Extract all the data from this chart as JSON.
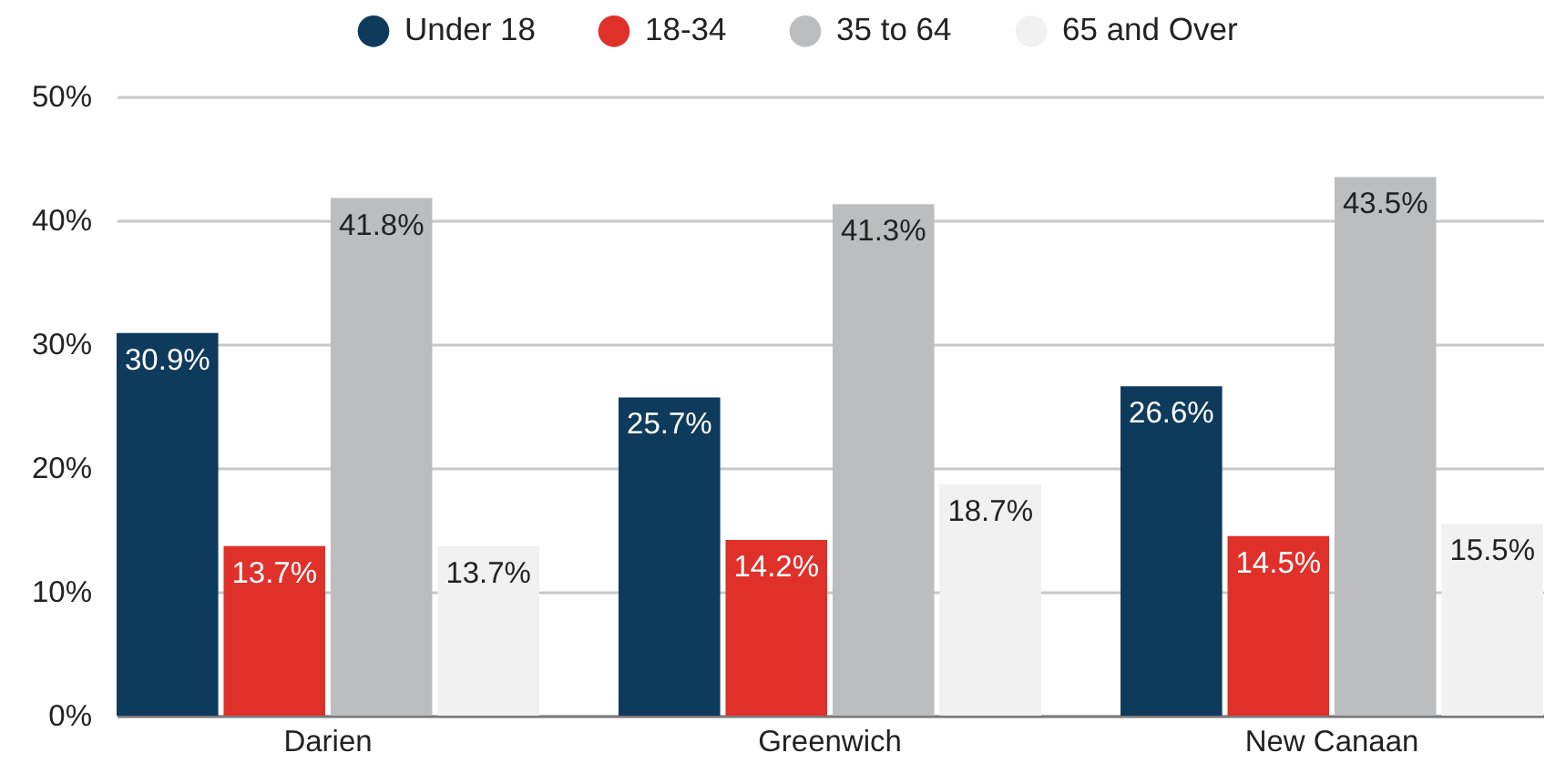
{
  "chart_data": {
    "type": "bar",
    "categories": [
      "Darien",
      "Greenwich",
      "New Canaan"
    ],
    "series": [
      {
        "name": "Under 18",
        "color": "#0e3a5c",
        "values": [
          30.9,
          25.7,
          26.6
        ],
        "value_labels": [
          "30.9%",
          "25.7%",
          "26.6%"
        ]
      },
      {
        "name": "18-34",
        "color": "#e0302a",
        "values": [
          13.7,
          14.2,
          14.5
        ],
        "value_labels": [
          "13.7%",
          "14.2%",
          "14.5%"
        ]
      },
      {
        "name": "35 to 64",
        "color": "#bcbdbf",
        "values": [
          41.8,
          41.3,
          43.5
        ],
        "value_labels": [
          "41.8%",
          "41.3%",
          "43.5%"
        ]
      },
      {
        "name": "65 and Over",
        "color": "#f0f1f0",
        "values": [
          13.7,
          18.7,
          15.5
        ],
        "value_labels": [
          "13.7%",
          "18.7%",
          "15.5%"
        ]
      }
    ],
    "ylim": [
      0,
      50
    ],
    "yticks": [
      {
        "value": 0,
        "label": "0%"
      },
      {
        "value": 10,
        "label": "10%"
      },
      {
        "value": 20,
        "label": "20%"
      },
      {
        "value": 30,
        "label": "30%"
      },
      {
        "value": 40,
        "label": "40%"
      },
      {
        "value": 50,
        "label": "50%"
      }
    ],
    "grid": "y",
    "legend": "top"
  }
}
